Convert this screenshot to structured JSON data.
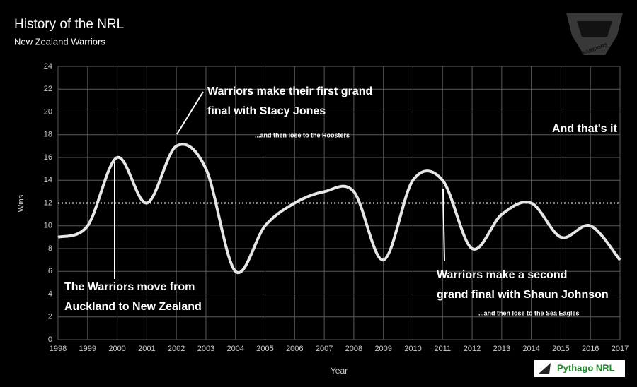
{
  "chart_data": {
    "type": "line",
    "title": "History of the NRL",
    "subtitle": "New Zealand Warriors",
    "x_label": "Year",
    "y_label": "Wins",
    "x": [
      1998,
      1999,
      2000,
      2001,
      2002,
      2003,
      2004,
      2005,
      2006,
      2007,
      2008,
      2009,
      2010,
      2011,
      2012,
      2013,
      2014,
      2015,
      2016,
      2017
    ],
    "series": [
      {
        "name": "Wins",
        "color": "#e6e6e6",
        "values": [
          9,
          10,
          16,
          12,
          17,
          15,
          6,
          10,
          12,
          13,
          13,
          7,
          14,
          14,
          8,
          11,
          12,
          9,
          10,
          7
        ]
      }
    ],
    "reference_line": 12,
    "xlim": [
      1998,
      2017
    ],
    "xticks": [
      1998,
      1999,
      2000,
      2001,
      2002,
      2003,
      2004,
      2005,
      2006,
      2007,
      2008,
      2009,
      2010,
      2011,
      2012,
      2013,
      2014,
      2015,
      2016,
      2017
    ],
    "ylim": [
      0,
      24
    ],
    "yticks": [
      0,
      2,
      4,
      6,
      8,
      10,
      12,
      14,
      16,
      18,
      20,
      22,
      24
    ],
    "grid": true,
    "annotations": [
      "The Warriors move from",
      "Auckland to New Zealand",
      "Warriors make their first grand",
      "final with Stacy Jones",
      "...and then lose to the Roosters",
      "And that's it",
      "Warriors make a second",
      "grand final with Shaun Johnson",
      "...and then lose to the Sea Eagles"
    ],
    "logo_text": "WARRIORS",
    "source": "Pythago NRL"
  }
}
